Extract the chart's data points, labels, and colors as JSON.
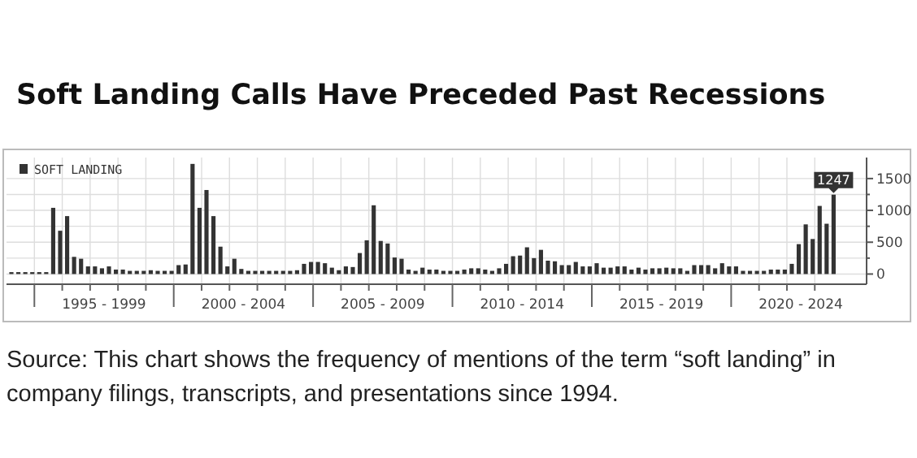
{
  "chart_data": {
    "type": "bar",
    "title": "Soft Landing Calls Have Preceded Past Recessions",
    "categories": [
      null,
      null,
      null,
      null,
      null,
      null,
      null,
      null,
      null,
      null,
      null,
      null,
      null,
      null,
      "1995 - 1999",
      null,
      null,
      null,
      null,
      null,
      null,
      null,
      null,
      null,
      null,
      null,
      null,
      null,
      null,
      null,
      null,
      null,
      null,
      null,
      "2000 - 2004",
      null,
      null,
      null,
      null,
      null,
      null,
      null,
      null,
      null,
      null,
      null,
      null,
      null,
      null,
      null,
      null,
      null,
      null,
      null,
      "2005 - 2009",
      null,
      null,
      null,
      null,
      null,
      null,
      null,
      null,
      null,
      null,
      null,
      null,
      null,
      null,
      null,
      null,
      null,
      null,
      null,
      "2010 - 2014",
      null,
      null,
      null,
      null,
      null,
      null,
      null,
      null,
      null,
      null,
      null,
      null,
      null,
      null,
      null,
      null,
      null,
      null,
      null,
      "2015 - 2019",
      null,
      null,
      null,
      null,
      null,
      null,
      null,
      null,
      null,
      null,
      null,
      null,
      null,
      null,
      null,
      null,
      null,
      null,
      null,
      "2020 - 2024",
      null,
      null,
      null,
      null
    ],
    "series": [
      {
        "name": "SOFT LANDING",
        "color": "#333333",
        "values": [
          30,
          30,
          30,
          30,
          30,
          30,
          1040,
          680,
          910,
          270,
          240,
          120,
          120,
          90,
          120,
          70,
          70,
          50,
          50,
          50,
          60,
          50,
          50,
          50,
          140,
          150,
          1730,
          1040,
          1320,
          910,
          430,
          120,
          240,
          80,
          50,
          50,
          50,
          50,
          50,
          50,
          50,
          60,
          160,
          190,
          190,
          170,
          100,
          60,
          120,
          110,
          330,
          530,
          1080,
          520,
          480,
          260,
          240,
          70,
          50,
          100,
          70,
          70,
          50,
          50,
          50,
          70,
          90,
          90,
          70,
          50,
          90,
          160,
          280,
          290,
          420,
          250,
          380,
          210,
          200,
          140,
          140,
          190,
          120,
          120,
          170,
          100,
          100,
          120,
          120,
          70,
          100,
          70,
          90,
          90,
          100,
          90,
          90,
          50,
          140,
          140,
          140,
          90,
          170,
          120,
          120,
          50,
          50,
          50,
          50,
          70,
          70,
          70,
          160,
          470,
          780,
          550,
          1070,
          790,
          1247
        ],
        "value_labels": [
          null,
          null,
          null,
          null,
          null,
          null,
          null,
          null,
          null,
          null,
          null,
          null,
          null,
          null,
          null,
          null,
          null,
          null,
          null,
          null,
          null,
          null,
          null,
          null,
          null,
          null,
          null,
          null,
          null,
          null,
          null,
          null,
          null,
          null,
          null,
          null,
          null,
          null,
          null,
          null,
          null,
          null,
          null,
          null,
          null,
          null,
          null,
          null,
          null,
          null,
          null,
          null,
          null,
          null,
          null,
          null,
          null,
          null,
          null,
          null,
          null,
          null,
          null,
          null,
          null,
          null,
          null,
          null,
          null,
          null,
          null,
          null,
          null,
          null,
          null,
          null,
          null,
          null,
          null,
          null,
          null,
          null,
          null,
          null,
          null,
          null,
          null,
          null,
          null,
          null,
          null,
          null,
          null,
          null,
          null,
          null,
          null,
          null,
          null,
          null,
          null,
          null,
          null,
          null,
          null,
          null,
          null,
          null,
          null,
          null,
          null,
          null,
          null,
          null,
          null,
          null,
          null,
          null,
          "1247"
        ]
      }
    ],
    "ylim": [
      -160,
      1830
    ],
    "yticks": [
      0,
      {
        "value": 250,
        "label": null
      },
      500,
      {
        "value": 750,
        "label": null
      },
      1000,
      {
        "value": 1250,
        "label": null
      },
      1500
    ],
    "grid": true,
    "legend": "top left",
    "annotations": [
      "Source: This chart shows the frequency of mentions of the term “soft landing” in company filings, transcripts, and presentations since 1994."
    ]
  }
}
